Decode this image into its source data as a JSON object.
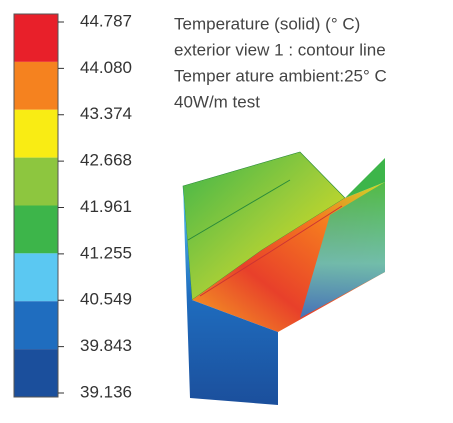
{
  "legend": {
    "colors": [
      "#e8202a",
      "#f5821f",
      "#f9ec14",
      "#8dc63f",
      "#3db54a",
      "#5bc8f2",
      "#1f6dbf",
      "#1b4f9c"
    ],
    "ticks": [
      "44.787",
      "44.080",
      "43.374",
      "42.668",
      "41.961",
      "41.255",
      "40.549",
      "39.843",
      "39.136"
    ]
  },
  "info": [
    "Temperature (solid) (° C)",
    "exterior view 1 : contour line",
    "Temper ature ambient:25° C",
    "40W/m test"
  ]
}
